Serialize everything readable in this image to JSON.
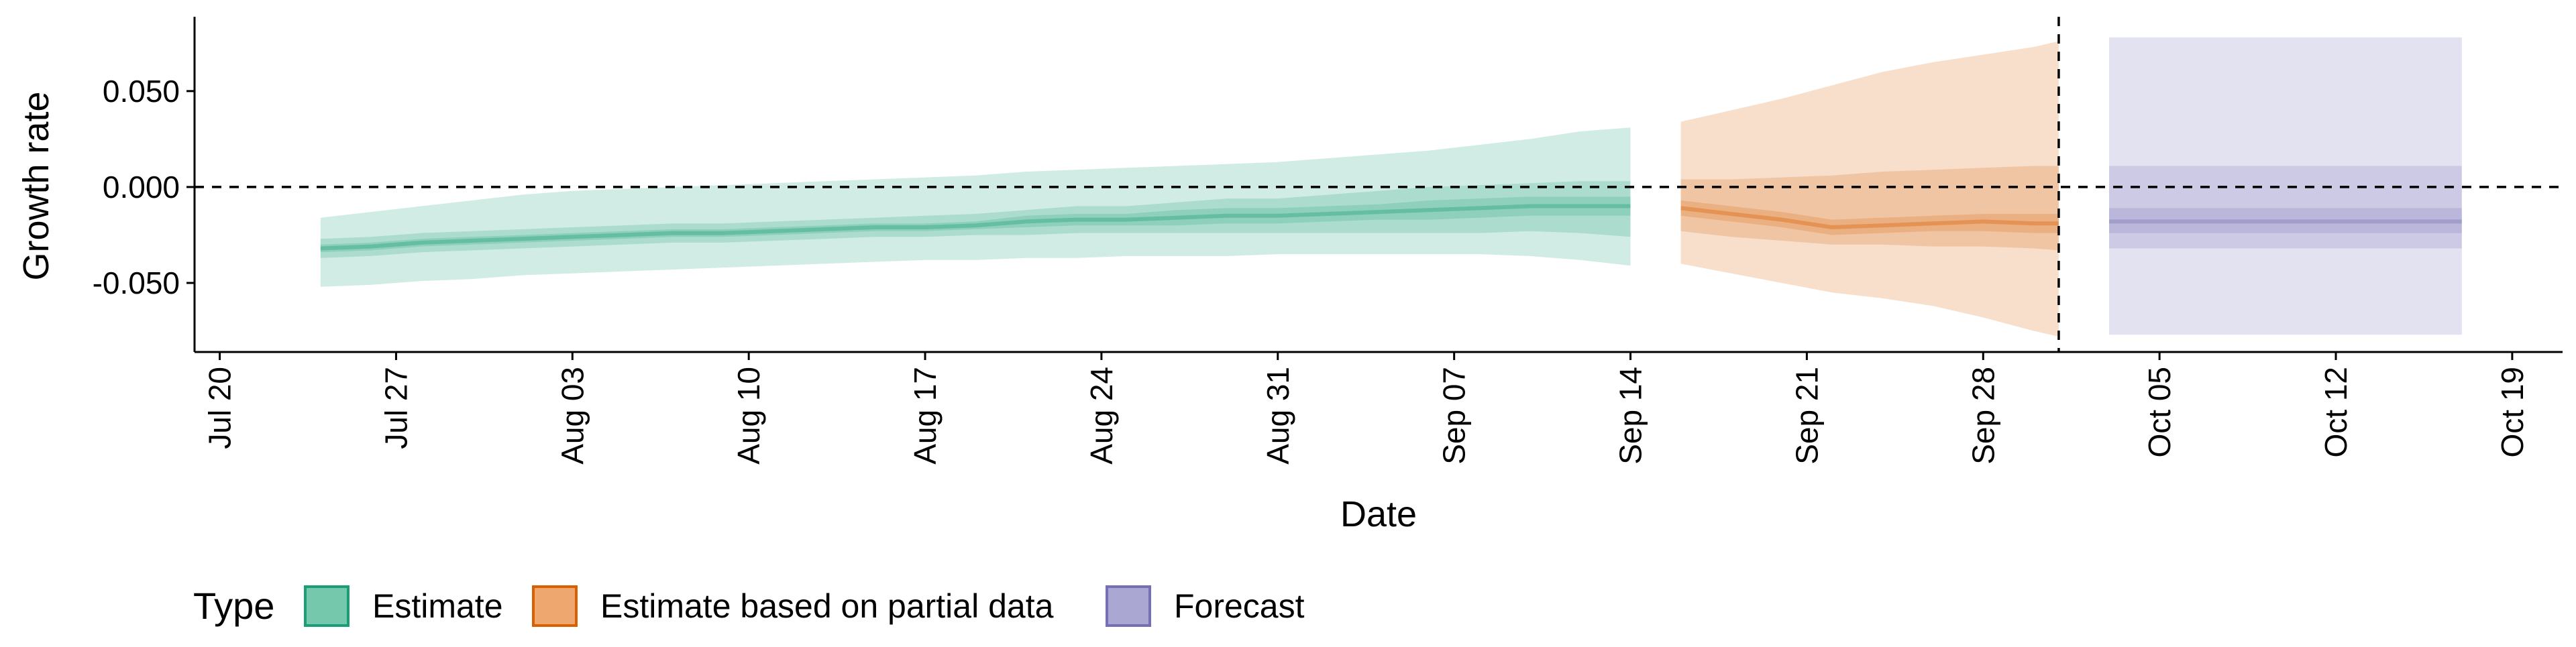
{
  "chart_data": {
    "type": "area",
    "xlabel": "Date",
    "ylabel": "Growth rate",
    "x_ticks": [
      {
        "date": "2020-07-20",
        "label": "Jul 20"
      },
      {
        "date": "2020-07-27",
        "label": "Jul 27"
      },
      {
        "date": "2020-08-03",
        "label": "Aug 03"
      },
      {
        "date": "2020-08-10",
        "label": "Aug 10"
      },
      {
        "date": "2020-08-17",
        "label": "Aug 17"
      },
      {
        "date": "2020-08-24",
        "label": "Aug 24"
      },
      {
        "date": "2020-08-31",
        "label": "Aug 31"
      },
      {
        "date": "2020-09-07",
        "label": "Sep 07"
      },
      {
        "date": "2020-09-14",
        "label": "Sep 14"
      },
      {
        "date": "2020-09-21",
        "label": "Sep 21"
      },
      {
        "date": "2020-09-28",
        "label": "Sep 28"
      },
      {
        "date": "2020-10-05",
        "label": "Oct 05"
      },
      {
        "date": "2020-10-12",
        "label": "Oct 12"
      },
      {
        "date": "2020-10-19",
        "label": "Oct 19"
      }
    ],
    "y_ticks": [
      {
        "value": 0.05,
        "label": "0.050"
      },
      {
        "value": 0.0,
        "label": "0.000"
      },
      {
        "value": -0.05,
        "label": "-0.050"
      }
    ],
    "xlim": [
      "2020-07-19",
      "2020-10-21"
    ],
    "ylim": [
      -0.086,
      0.087
    ],
    "hline_y": 0,
    "vline_date": "2020-10-01",
    "grid": false,
    "legend": {
      "title": "Type",
      "position": "bottom-left",
      "items": [
        {
          "label": "Estimate",
          "fill": "#76C8AD",
          "stroke": "#1B9E77"
        },
        {
          "label": "Estimate based on partial data",
          "fill": "#EDA76F",
          "stroke": "#D95F02"
        },
        {
          "label": "Forecast",
          "fill": "#AAA7D2",
          "stroke": "#7570B3"
        }
      ]
    },
    "series": [
      {
        "name": "Estimate",
        "color": "#1B9E77",
        "x": [
          "2020-07-24",
          "2020-07-26",
          "2020-07-28",
          "2020-07-30",
          "2020-08-01",
          "2020-08-03",
          "2020-08-05",
          "2020-08-07",
          "2020-08-09",
          "2020-08-11",
          "2020-08-13",
          "2020-08-15",
          "2020-08-17",
          "2020-08-19",
          "2020-08-21",
          "2020-08-23",
          "2020-08-25",
          "2020-08-27",
          "2020-08-29",
          "2020-08-31",
          "2020-09-02",
          "2020-09-04",
          "2020-09-06",
          "2020-09-08",
          "2020-09-10",
          "2020-09-12",
          "2020-09-14"
        ],
        "median": [
          -0.032,
          -0.031,
          -0.029,
          -0.028,
          -0.027,
          -0.026,
          -0.025,
          -0.024,
          -0.024,
          -0.023,
          -0.022,
          -0.021,
          -0.021,
          -0.02,
          -0.018,
          -0.017,
          -0.017,
          -0.016,
          -0.015,
          -0.015,
          -0.014,
          -0.013,
          -0.012,
          -0.011,
          -0.01,
          -0.01,
          -0.01
        ],
        "lower_20": [
          -0.034,
          -0.033,
          -0.031,
          -0.03,
          -0.029,
          -0.028,
          -0.027,
          -0.026,
          -0.026,
          -0.025,
          -0.024,
          -0.023,
          -0.023,
          -0.022,
          -0.021,
          -0.02,
          -0.02,
          -0.02,
          -0.019,
          -0.019,
          -0.018,
          -0.017,
          -0.017,
          -0.016,
          -0.015,
          -0.015,
          -0.015
        ],
        "upper_20": [
          -0.03,
          -0.029,
          -0.027,
          -0.026,
          -0.025,
          -0.024,
          -0.023,
          -0.022,
          -0.022,
          -0.021,
          -0.02,
          -0.019,
          -0.019,
          -0.018,
          -0.015,
          -0.014,
          -0.014,
          -0.012,
          -0.011,
          -0.011,
          -0.01,
          -0.009,
          -0.007,
          -0.006,
          -0.005,
          -0.005,
          -0.005
        ],
        "lower_50": [
          -0.037,
          -0.036,
          -0.034,
          -0.033,
          -0.032,
          -0.031,
          -0.03,
          -0.029,
          -0.029,
          -0.028,
          -0.027,
          -0.026,
          -0.026,
          -0.025,
          -0.025,
          -0.024,
          -0.024,
          -0.024,
          -0.024,
          -0.024,
          -0.024,
          -0.024,
          -0.024,
          -0.024,
          -0.023,
          -0.024,
          -0.026
        ],
        "upper_50": [
          -0.027,
          -0.026,
          -0.024,
          -0.023,
          -0.022,
          -0.021,
          -0.02,
          -0.019,
          -0.019,
          -0.018,
          -0.017,
          -0.016,
          -0.015,
          -0.014,
          -0.012,
          -0.01,
          -0.01,
          -0.008,
          -0.006,
          -0.006,
          -0.004,
          -0.002,
          0.0,
          0.001,
          0.002,
          0.003,
          0.003
        ],
        "lower_90": [
          -0.052,
          -0.051,
          -0.049,
          -0.048,
          -0.046,
          -0.045,
          -0.044,
          -0.043,
          -0.042,
          -0.041,
          -0.04,
          -0.039,
          -0.038,
          -0.038,
          -0.037,
          -0.037,
          -0.036,
          -0.036,
          -0.036,
          -0.035,
          -0.035,
          -0.035,
          -0.035,
          -0.035,
          -0.036,
          -0.038,
          -0.041
        ],
        "upper_90": [
          -0.016,
          -0.013,
          -0.01,
          -0.007,
          -0.004,
          -0.002,
          -0.001,
          0.0,
          0.001,
          0.002,
          0.003,
          0.004,
          0.005,
          0.006,
          0.008,
          0.009,
          0.01,
          0.011,
          0.012,
          0.013,
          0.015,
          0.017,
          0.019,
          0.022,
          0.025,
          0.029,
          0.031
        ]
      },
      {
        "name": "Estimate based on partial data",
        "color": "#D95F02",
        "x": [
          "2020-09-16",
          "2020-09-18",
          "2020-09-20",
          "2020-09-22",
          "2020-09-24",
          "2020-09-26",
          "2020-09-28",
          "2020-09-30",
          "2020-10-01"
        ],
        "median": [
          -0.011,
          -0.014,
          -0.017,
          -0.021,
          -0.02,
          -0.019,
          -0.018,
          -0.019,
          -0.019
        ],
        "lower_20": [
          -0.015,
          -0.018,
          -0.021,
          -0.025,
          -0.024,
          -0.023,
          -0.023,
          -0.024,
          -0.024
        ],
        "upper_20": [
          -0.007,
          -0.01,
          -0.013,
          -0.017,
          -0.016,
          -0.015,
          -0.014,
          -0.014,
          -0.014
        ],
        "lower_50": [
          -0.023,
          -0.026,
          -0.028,
          -0.03,
          -0.03,
          -0.031,
          -0.031,
          -0.032,
          -0.033
        ],
        "upper_50": [
          0.004,
          0.004,
          0.005,
          0.006,
          0.008,
          0.009,
          0.01,
          0.011,
          0.011
        ],
        "lower_90": [
          -0.04,
          -0.045,
          -0.05,
          -0.055,
          -0.058,
          -0.062,
          -0.068,
          -0.075,
          -0.078
        ],
        "upper_90": [
          0.034,
          0.04,
          0.046,
          0.053,
          0.06,
          0.065,
          0.069,
          0.073,
          0.076
        ]
      },
      {
        "name": "Forecast",
        "color": "#7570B3",
        "x": [
          "2020-10-03",
          "2020-10-17"
        ],
        "median": [
          -0.018,
          -0.018
        ],
        "lower_20": [
          -0.024,
          -0.024
        ],
        "upper_20": [
          -0.011,
          -0.011
        ],
        "lower_50": [
          -0.032,
          -0.032
        ],
        "upper_50": [
          0.011,
          0.011
        ],
        "lower_90": [
          -0.077,
          -0.077
        ],
        "upper_90": [
          0.078,
          0.078
        ]
      }
    ]
  }
}
